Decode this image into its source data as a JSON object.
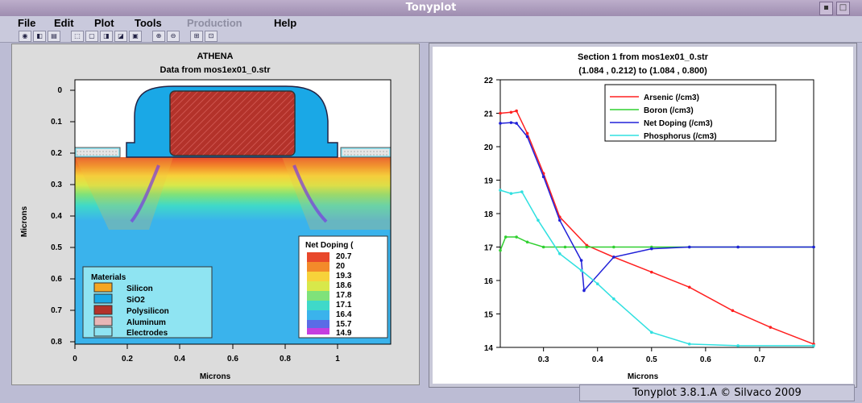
{
  "window": {
    "title": "Tonyplot"
  },
  "menu": [
    {
      "label": "File",
      "disabled": false
    },
    {
      "label": "Edit",
      "disabled": false
    },
    {
      "label": "Plot",
      "disabled": false
    },
    {
      "label": "Tools",
      "disabled": false
    },
    {
      "label": "Production",
      "disabled": true
    },
    {
      "label": "Help",
      "disabled": false
    }
  ],
  "left_plot": {
    "title": "ATHENA",
    "subtitle": "Data from mos1ex01_0.str",
    "xlabel": "Microns",
    "ylabel": "Microns",
    "x_ticks": [
      "0",
      "0.2",
      "0.4",
      "0.6",
      "0.8",
      "1"
    ],
    "y_ticks": [
      "0",
      "0.1",
      "0.2",
      "0.3",
      "0.4",
      "0.5",
      "0.6",
      "0.7",
      "0.8"
    ],
    "materials_legend": {
      "title": "Materials",
      "items": [
        {
          "label": "Silicon",
          "color": "#f5a623"
        },
        {
          "label": "SiO2",
          "color": "#1aa8e6"
        },
        {
          "label": "Polysilicon",
          "color": "#b3322a"
        },
        {
          "label": "Aluminum",
          "color": "#e8b6b6"
        },
        {
          "label": "Electrodes",
          "color": "#8fe4f2"
        }
      ]
    },
    "doping_legend": {
      "title": "Net Doping (",
      "items": [
        {
          "label": "20.7",
          "color": "#e8482b"
        },
        {
          "label": "20",
          "color": "#f38a2a"
        },
        {
          "label": "19.3",
          "color": "#f7d23a"
        },
        {
          "label": "18.6",
          "color": "#d8e84a"
        },
        {
          "label": "17.8",
          "color": "#7fe27a"
        },
        {
          "label": "17.1",
          "color": "#3fd9c9"
        },
        {
          "label": "16.4",
          "color": "#3ab3ec"
        },
        {
          "label": "15.7",
          "color": "#5a6ce6"
        },
        {
          "label": "14.9",
          "color": "#c43ee0"
        }
      ]
    }
  },
  "chart_data": {
    "type": "line",
    "title": "Section 1 from mos1ex01_0.str",
    "subtitle": "(1.084 , 0.212) to (1.084 , 0.800)",
    "xlabel": "Microns",
    "ylabel": "",
    "xlim": [
      0.22,
      0.8
    ],
    "ylim": [
      14,
      22
    ],
    "x_ticks": [
      0.3,
      0.4,
      0.5,
      0.6,
      0.7
    ],
    "y_ticks": [
      14,
      15,
      16,
      17,
      18,
      19,
      20,
      21,
      22
    ],
    "legend_position": "top-right",
    "series": [
      {
        "name": "Arsenic (/cm3)",
        "color": "#ff2020",
        "x": [
          0.22,
          0.24,
          0.25,
          0.27,
          0.3,
          0.33,
          0.38,
          0.43,
          0.5,
          0.57,
          0.65,
          0.72,
          0.8
        ],
        "y": [
          21.0,
          21.03,
          21.07,
          20.4,
          19.2,
          17.9,
          17.05,
          16.7,
          16.25,
          15.8,
          15.1,
          14.6,
          14.1
        ]
      },
      {
        "name": "Boron (/cm3)",
        "color": "#30d030",
        "x": [
          0.22,
          0.23,
          0.25,
          0.27,
          0.3,
          0.34,
          0.38,
          0.43,
          0.5,
          0.57,
          0.66,
          0.8
        ],
        "y": [
          16.9,
          17.3,
          17.3,
          17.15,
          17.0,
          17.0,
          17.0,
          17.0,
          17.0,
          17.0,
          17.0,
          17.0
        ]
      },
      {
        "name": "Net Doping (/cm3)",
        "color": "#2020d8",
        "x": [
          0.22,
          0.24,
          0.25,
          0.27,
          0.3,
          0.33,
          0.37,
          0.375,
          0.43,
          0.5,
          0.57,
          0.66,
          0.8
        ],
        "y": [
          20.7,
          20.72,
          20.7,
          20.3,
          19.1,
          17.8,
          16.6,
          15.7,
          16.7,
          16.95,
          17.0,
          17.0,
          17.0
        ]
      },
      {
        "name": "Phosphorus (/cm3)",
        "color": "#30e0e0",
        "x": [
          0.22,
          0.24,
          0.26,
          0.29,
          0.33,
          0.37,
          0.4,
          0.43,
          0.5,
          0.57,
          0.66,
          0.8
        ],
        "y": [
          18.7,
          18.6,
          18.65,
          17.8,
          16.8,
          16.3,
          15.9,
          15.45,
          14.45,
          14.1,
          14.05,
          14.05
        ]
      }
    ]
  },
  "status": {
    "text": "Tonyplot 3.8.1.A © Silvaco 2009"
  }
}
